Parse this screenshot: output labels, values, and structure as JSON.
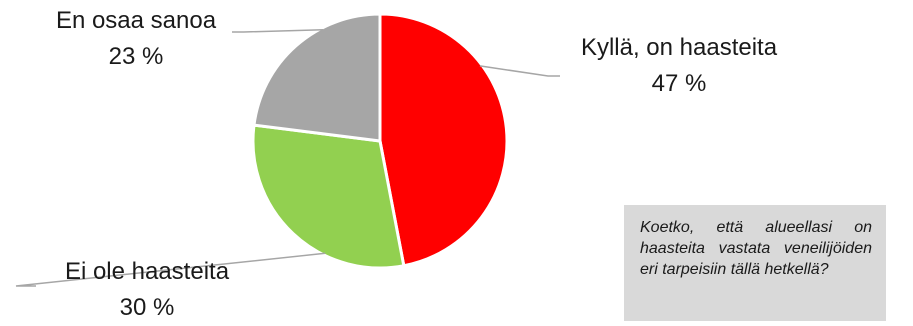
{
  "chart_data": {
    "type": "pie",
    "slices": [
      {
        "label": "Kyllä, on haasteita",
        "value": 47,
        "value_text": "47 %",
        "color": "#ff0000"
      },
      {
        "label": "Ei ole haasteita",
        "value": 30,
        "value_text": "30 %",
        "color": "#92d050"
      },
      {
        "label": "En osaa sanoa",
        "value": 23,
        "value_text": "23 %",
        "color": "#a6a6a6"
      }
    ],
    "start_angle": "12 o'clock",
    "direction": "clockwise",
    "legend": "none",
    "data_labels": "outside with leader lines"
  },
  "question": "Koetko, että alueellasi on haasteita vastata veneilijöiden eri tarpeisiin tällä hetkellä?"
}
